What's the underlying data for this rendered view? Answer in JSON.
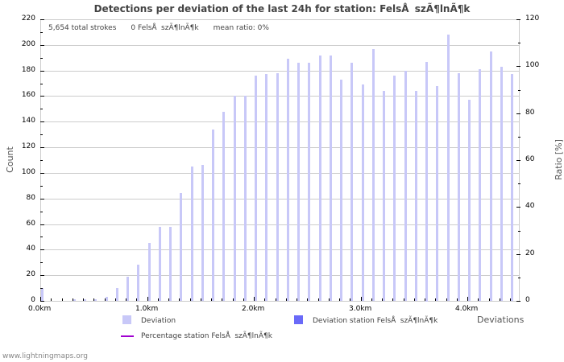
{
  "chart_data": {
    "type": "bar",
    "title": "Detections per deviation of the last 24h for station: FelsÅszÃ¶lnÃ¶k",
    "xlabel": "Deviations",
    "ylabel": "Count",
    "ylabel_right": "Ratio [%]",
    "ylim": [
      0,
      220
    ],
    "ylim_right": [
      0,
      120
    ],
    "yticks": [
      0,
      20,
      40,
      60,
      80,
      100,
      120,
      140,
      160,
      180,
      200,
      220
    ],
    "yticks_right": [
      0,
      20,
      40,
      60,
      80,
      100,
      120
    ],
    "xtick_labels": [
      "0.0km",
      "1.0km",
      "2.0km",
      "3.0km",
      "4.0km"
    ],
    "grid": true,
    "legend_position": "bottom",
    "categories": [
      "0.0",
      "0.1",
      "0.2",
      "0.3",
      "0.4",
      "0.5",
      "0.6",
      "0.7",
      "0.8",
      "0.9",
      "1.0",
      "1.1",
      "1.2",
      "1.3",
      "1.4",
      "1.5",
      "1.6",
      "1.7",
      "1.8",
      "1.9",
      "2.0",
      "2.1",
      "2.2",
      "2.3",
      "2.4",
      "2.5",
      "2.6",
      "2.7",
      "2.8",
      "2.9",
      "3.0",
      "3.1",
      "3.2",
      "3.3",
      "3.4",
      "3.5",
      "3.6",
      "3.7",
      "3.8",
      "3.9",
      "4.0",
      "4.1",
      "4.2",
      "4.3",
      "4.4"
    ],
    "series": [
      {
        "name": "Deviation",
        "color": "#c8c8f8",
        "values": [
          10,
          0,
          0,
          1,
          1,
          1,
          3,
          10,
          19,
          28,
          45,
          58,
          58,
          84,
          105,
          106,
          134,
          148,
          160,
          160,
          176,
          177,
          178,
          189,
          186,
          186,
          192,
          192,
          173,
          186,
          169,
          197,
          164,
          176,
          180,
          164,
          187,
          168,
          208,
          178,
          157,
          181,
          195,
          183,
          177
        ]
      },
      {
        "name": "Deviation station FelsÅszÃ¶lnÃ¶k",
        "color": "#6a6af8",
        "values": [
          0,
          0,
          0,
          0,
          0,
          0,
          0,
          0,
          0,
          0,
          0,
          0,
          0,
          0,
          0,
          0,
          0,
          0,
          0,
          0,
          0,
          0,
          0,
          0,
          0,
          0,
          0,
          0,
          0,
          0,
          0,
          0,
          0,
          0,
          0,
          0,
          0,
          0,
          0,
          0,
          0,
          0,
          0,
          0,
          0
        ]
      },
      {
        "name": "Percentage station FelsÅszÃ¶lnÃ¶k",
        "color": "#a000d0",
        "type": "line",
        "values": [
          0,
          0,
          0,
          0,
          0,
          0,
          0,
          0,
          0,
          0,
          0,
          0,
          0,
          0,
          0,
          0,
          0,
          0,
          0,
          0,
          0,
          0,
          0,
          0,
          0,
          0,
          0,
          0,
          0,
          0,
          0,
          0,
          0,
          0,
          0,
          0,
          0,
          0,
          0,
          0,
          0,
          0,
          0,
          0,
          0
        ]
      }
    ],
    "annotations": [
      "5,654 total strokes",
      "0 FelsÅszÃ¶lnÃ¶k",
      "mean ratio: 0%"
    ]
  },
  "header": {
    "title": "Detections per deviation of the last 24h for station: FelsÅszÃ¶lnÃ¶k"
  },
  "info": {
    "total_strokes": "5,654 total strokes",
    "station_count": "0 FelsÅszÃ¶lnÃ¶k",
    "mean_ratio": "mean ratio: 0%"
  },
  "axes": {
    "y_left_title": "Count",
    "y_right_title": "Ratio [%]",
    "x_title": "Deviations",
    "y_left_labels": [
      "220",
      "200",
      "180",
      "160",
      "140",
      "120",
      "100",
      "80",
      "60",
      "40",
      "20",
      "0"
    ],
    "y_right_labels": [
      "120",
      "100",
      "80",
      "60",
      "40",
      "20",
      "0"
    ],
    "x_labels": [
      "0.0km",
      "1.0km",
      "2.0km",
      "3.0km",
      "4.0km"
    ]
  },
  "legend": {
    "deviation": "Deviation",
    "deviation_station": "Deviation station FelsÅszÃ¶lnÃ¶k",
    "percentage_station": "Percentage station FelsÅszÃ¶lnÃ¶k"
  },
  "footer": {
    "credit": "www.lightningmaps.org"
  }
}
